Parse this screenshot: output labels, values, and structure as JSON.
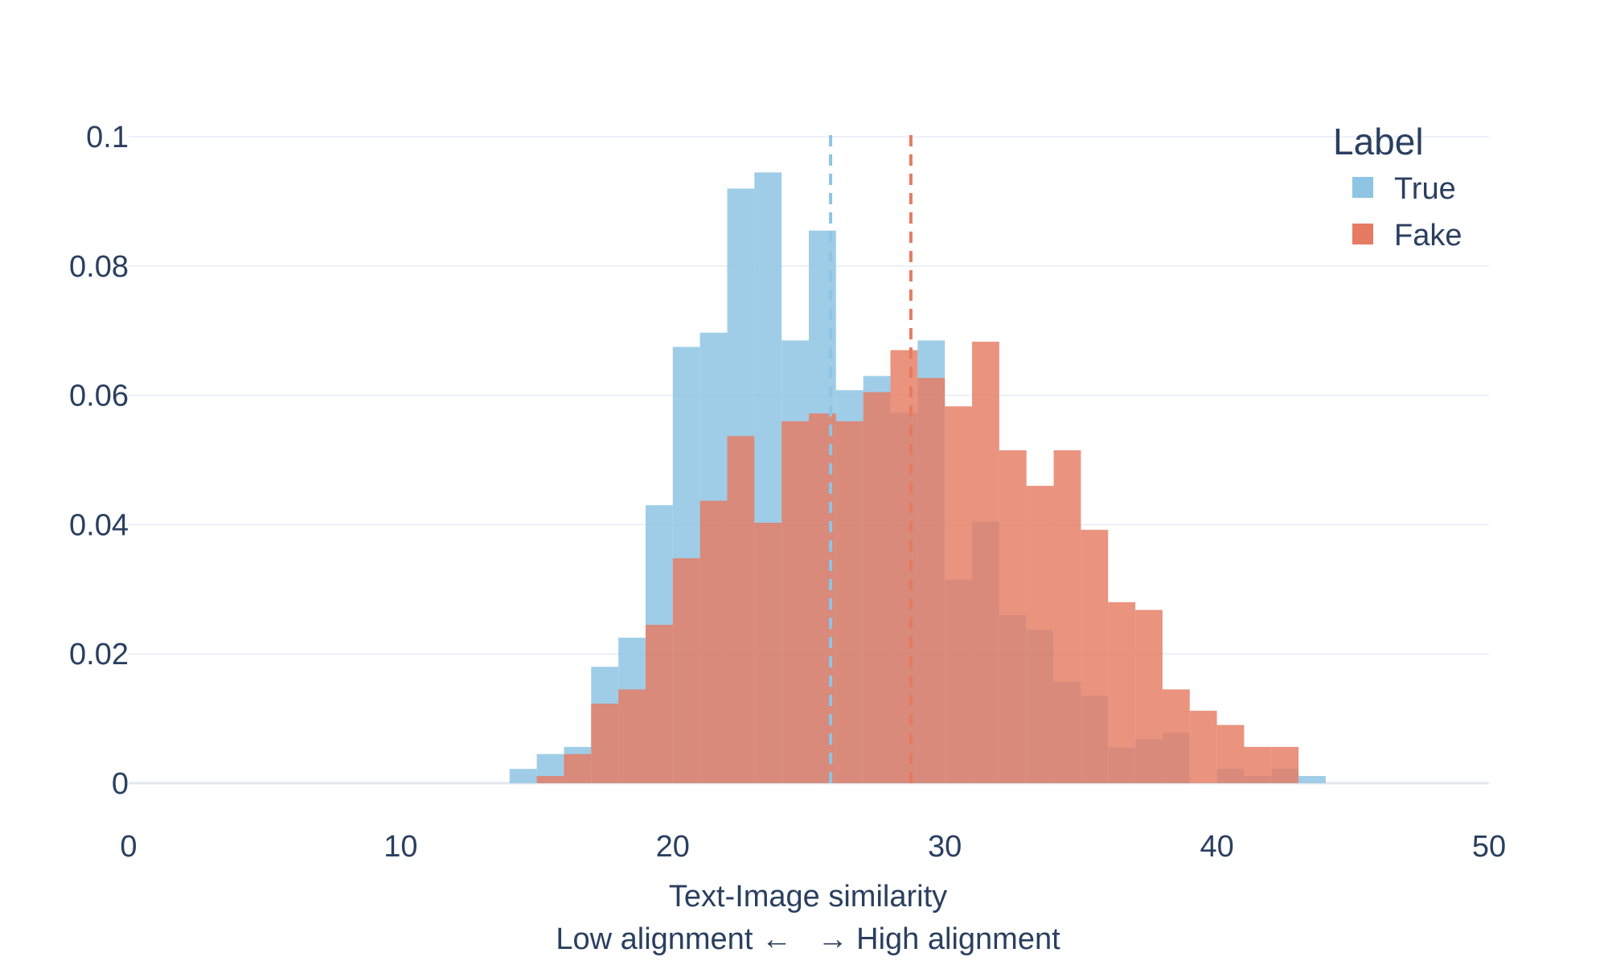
{
  "chart_data": {
    "type": "histogram",
    "title": "",
    "xlabel": "Text-Image similarity",
    "xlabel_sub": "Low alignment ←   → High alignment",
    "ylabel": "",
    "xlim": [
      0,
      50
    ],
    "ylim": [
      -0.0045,
      0.105
    ],
    "x_ticks": [
      0,
      10,
      20,
      30,
      40,
      50
    ],
    "x_tick_labels": [
      "0",
      "10",
      "20",
      "30",
      "40",
      "50"
    ],
    "y_ticks": [
      0,
      0.02,
      0.04,
      0.06,
      0.08,
      0.1
    ],
    "y_tick_labels": [
      "0",
      "0.02",
      "0.04",
      "0.06",
      "0.08",
      "0.1"
    ],
    "grid": true,
    "legend_position": "top-right",
    "legend_title": "Label",
    "bin_start": 14,
    "bin_width": 1,
    "series": [
      {
        "name": "True",
        "color": "#8ec4e4",
        "values": [
          0.0022,
          0.0045,
          0.0056,
          0.018,
          0.0225,
          0.043,
          0.0675,
          0.0697,
          0.092,
          0.0945,
          0.0685,
          0.0855,
          0.0608,
          0.063,
          0.0573,
          0.0685,
          0.0315,
          0.0405,
          0.026,
          0.0237,
          0.0157,
          0.0135,
          0.0055,
          0.0068,
          0.0078,
          0,
          0.0022,
          0.0011,
          0.0022,
          0.0011
        ],
        "mean": 25.8
      },
      {
        "name": "Fake",
        "color": "#e57b62",
        "values": [
          0,
          0.0011,
          0.0045,
          0.0123,
          0.0145,
          0.0245,
          0.0348,
          0.0437,
          0.0537,
          0.0403,
          0.056,
          0.0572,
          0.056,
          0.0605,
          0.067,
          0.0627,
          0.0583,
          0.0683,
          0.0515,
          0.046,
          0.0515,
          0.0392,
          0.028,
          0.0268,
          0.0145,
          0.0112,
          0.009,
          0.0056,
          0.0056,
          0
        ],
        "mean": 28.75
      }
    ]
  }
}
